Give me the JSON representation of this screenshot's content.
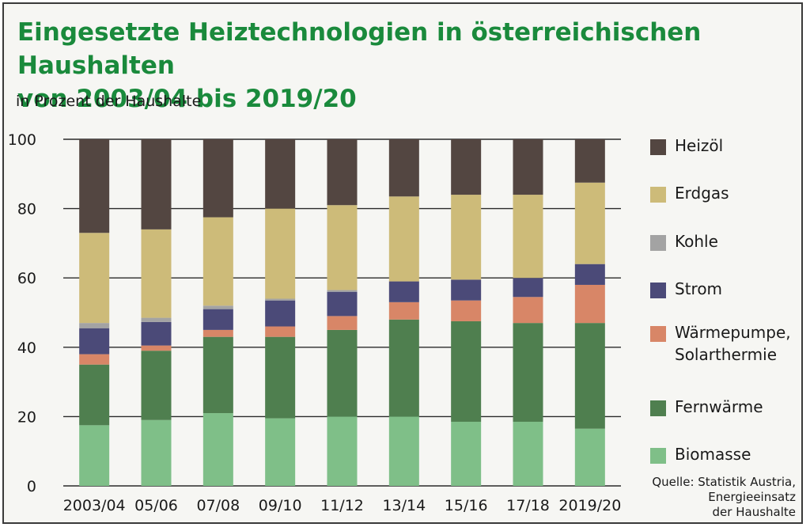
{
  "title": {
    "line1": "Eingesetzte Heiztechnologien in österreichischen Haushalten",
    "line2": "von 2003/04 bis 2019/20"
  },
  "unit_label": "in Prozent der Haushalte",
  "source": "Quelle: Statistik Austria,\nEnergieeinsatz\nder Haushalte",
  "chart_data": {
    "type": "bar",
    "stacked": true,
    "title": "Eingesetzte Heiztechnologien in österreichischen Haushalten von 2003/04 bis 2019/20",
    "ylabel": "in Prozent der Haushalte",
    "ylim": [
      0,
      100
    ],
    "yticks": [
      0,
      20,
      40,
      60,
      80,
      100
    ],
    "grid": true,
    "legend_position": "right",
    "categories": [
      "2003/04",
      "05/06",
      "07/08",
      "09/10",
      "11/12",
      "13/14",
      "15/16",
      "17/18",
      "2019/20"
    ],
    "series": [
      {
        "name": "Biomasse",
        "color": "#7fbf88",
        "values": [
          17.5,
          19,
          21,
          19.5,
          20,
          20,
          18.5,
          18.5,
          16.5
        ]
      },
      {
        "name": "Fernwärme",
        "color": "#4f7f4f",
        "values": [
          17.5,
          20,
          22,
          23.5,
          25,
          28,
          29,
          28.5,
          30.5
        ]
      },
      {
        "name": "Wärmepumpe,\nSolarthermie",
        "color": "#d88667",
        "values": [
          3,
          1.5,
          2,
          3,
          4,
          5,
          6,
          7.5,
          11
        ]
      },
      {
        "name": "Strom",
        "color": "#4b4a78",
        "values": [
          7.5,
          6.8,
          6,
          7.5,
          7,
          6,
          6,
          5.5,
          6
        ]
      },
      {
        "name": "Kohle",
        "color": "#a3a3a3",
        "values": [
          1.5,
          1.2,
          1,
          0.5,
          0.5,
          0,
          0,
          0,
          0
        ]
      },
      {
        "name": "Erdgas",
        "color": "#cdbb79",
        "values": [
          26,
          25.5,
          25.5,
          26,
          24.5,
          24.5,
          24.5,
          24,
          23.5
        ]
      },
      {
        "name": "Heizöl",
        "color": "#534641",
        "values": [
          27,
          26,
          22.5,
          20,
          19,
          16.5,
          16,
          16,
          12.5
        ]
      }
    ]
  }
}
